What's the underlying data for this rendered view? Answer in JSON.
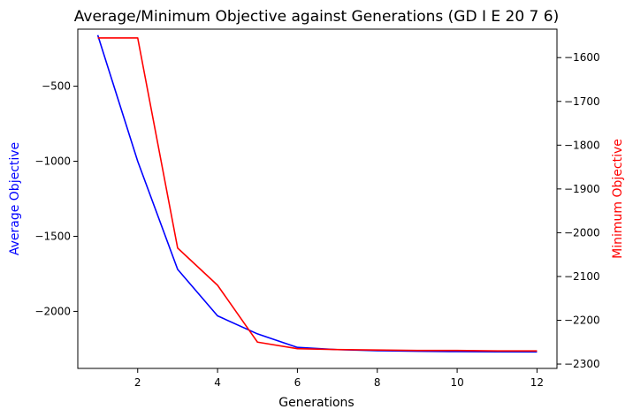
{
  "chart_data": {
    "type": "line",
    "title": "Average/Minimum Objective against Generations (GD I E 20 7 6)",
    "xlabel": "Generations",
    "ylabel_left": "Average Objective",
    "ylabel_right": "Minimum Objective",
    "xlim": [
      0.5,
      12.5
    ],
    "ylim_left": [
      -2380,
      -120
    ],
    "ylim_right": [
      -2310,
      -1535
    ],
    "x_ticks": [
      "2",
      "4",
      "6",
      "8",
      "10",
      "12"
    ],
    "y_ticks_left": [
      "−500",
      "−1000",
      "−1500",
      "−2000"
    ],
    "y_ticks_right": [
      "−1600",
      "−1700",
      "−1800",
      "−1900",
      "−2000",
      "−2100",
      "−2200",
      "−2300"
    ],
    "grid": false,
    "series": [
      {
        "axis": "left",
        "color": "#0000ff",
        "x": [
          1,
          2,
          3,
          4,
          5,
          6,
          7,
          8,
          9,
          10,
          11,
          12
        ],
        "values": [
          -160,
          -1000,
          -1720,
          -2030,
          -2150,
          -2240,
          -2255,
          -2262,
          -2266,
          -2268,
          -2269,
          -2270
        ]
      },
      {
        "axis": "right",
        "color": "#ff0000",
        "x": [
          1,
          2,
          3,
          4,
          5,
          6,
          7,
          8,
          9,
          10,
          11,
          12
        ],
        "values": [
          -1555,
          -1555,
          -2035,
          -2120,
          -2250,
          -2265,
          -2267,
          -2268,
          -2269,
          -2269,
          -2270,
          -2270
        ]
      }
    ]
  }
}
